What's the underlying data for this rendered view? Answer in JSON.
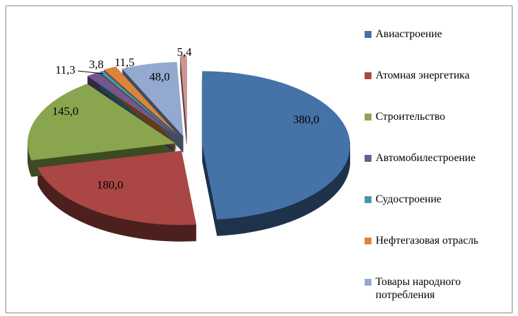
{
  "chart_data": {
    "type": "pie3d",
    "categories": [
      "Авиастроение",
      "Атомная энергетика",
      "Строительство",
      "Автомобилестроение",
      "Судостроение",
      "Нефтегазовая отрасль",
      "Товары народного потребления",
      null
    ],
    "values": [
      380.0,
      180.0,
      145.0,
      11.3,
      3.8,
      11.5,
      48.0,
      5.4
    ],
    "value_labels": [
      "380,0",
      "180,0",
      "145,0",
      "11,3",
      "3,8",
      "11,5",
      "48,0",
      "5,4"
    ],
    "colors": [
      "#4572a7",
      "#aa4643",
      "#89a54e",
      "#71588f",
      "#4198af",
      "#db843d",
      "#93a9cf",
      "#d19392"
    ]
  }
}
